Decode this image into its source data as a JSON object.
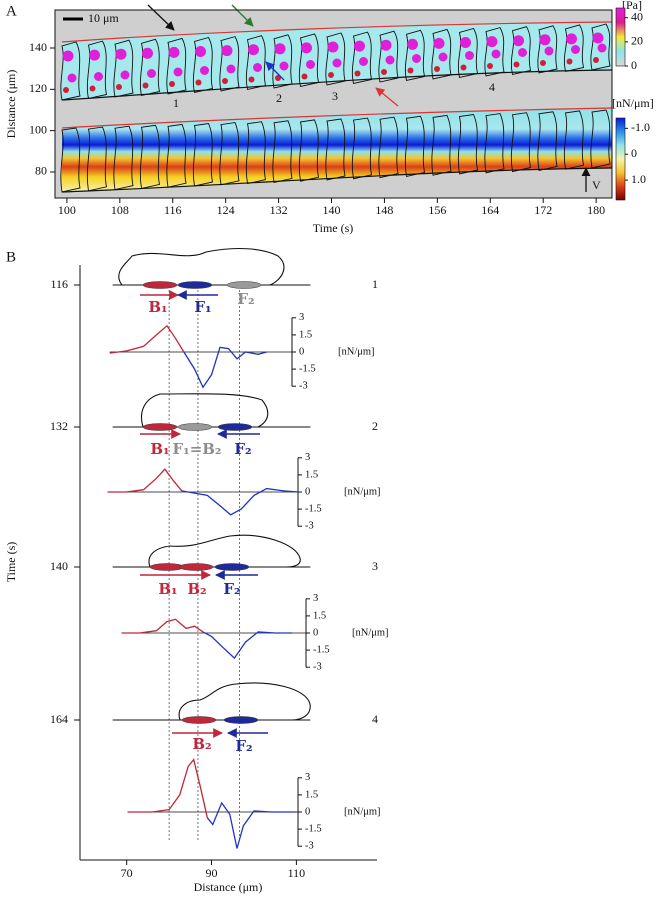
{
  "panel_a": {
    "label": "A",
    "x_label": "Time (s)",
    "y_label": "Distance (μm)",
    "xlim": [
      98.2,
      182.4
    ],
    "xticks": [
      100,
      108,
      116,
      124,
      132,
      140,
      148,
      156,
      164,
      172,
      180
    ],
    "ylim": [
      67.4,
      158.4
    ],
    "yticks": [
      80,
      100,
      120,
      140
    ],
    "scale_bar": "10 μm",
    "cell_labels": [
      "1",
      "2",
      "3",
      "4"
    ],
    "v_label": "V",
    "colorbar_top": {
      "unit": "[Pa]",
      "lim": [
        0,
        48
      ],
      "ticks": [
        0,
        20,
        40
      ],
      "colors": [
        "#d9d9d9",
        "#8fe3e8",
        "#f4ea3a",
        "#d61f8e",
        "#e81ce0"
      ]
    },
    "colorbar_bottom": {
      "unit": "[nN/μm]",
      "lim": [
        -1.4,
        1.77
      ],
      "ticks": [
        {
          "value": -1,
          "label": "-1.0"
        },
        0,
        {
          "value": 1,
          "label": "1.0"
        }
      ],
      "colors": [
        "#0a1bd6",
        "#2b8fe8",
        "#8fe3e8",
        "#f7f2b0",
        "#f5c430",
        "#d9401a",
        "#7a0000"
      ]
    }
  },
  "panel_b": {
    "label": "B",
    "x_label": "Distance (μm)",
    "y_label": "Time (s)",
    "xlim": [
      59,
      129
    ],
    "xticks": [
      70,
      90,
      110
    ],
    "guide_lines": [
      80,
      86.8,
      96.6
    ],
    "trace_yticks": [
      3,
      1.5,
      0,
      -1.5,
      -3
    ],
    "trace_unit": "[nN/μm]",
    "rows": [
      {
        "time": 116,
        "label": "1",
        "annotations": [
          {
            "text": "B₁",
            "color": "#c0273a"
          },
          {
            "text": "F₁",
            "color": "#1f2a9a"
          },
          {
            "text": "F₂",
            "color": "#8c8c8c"
          }
        ],
        "traces": [
          {
            "color": "#c0273a",
            "x": [
              66,
              70,
              74,
              77,
              79.5,
              81.5,
              83.5
            ],
            "values": [
              -0.1,
              0.1,
              0.5,
              1.5,
              2.3,
              1.2,
              0
            ]
          },
          {
            "color": "#1f35c0",
            "x": [
              83.5,
              86,
              88,
              90,
              92,
              94,
              96,
              98,
              101,
              103
            ],
            "values": [
              0,
              -1.5,
              -3.1,
              -2,
              0.4,
              0.3,
              -0.6,
              0,
              -0.2,
              0
            ]
          }
        ]
      },
      {
        "time": 132,
        "label": "2",
        "annotations": [
          {
            "text": "B₁",
            "color": "#c0273a"
          },
          {
            "text": "F₁=B₂",
            "color": "#8c8c8c"
          },
          {
            "text": "F₂",
            "color": "#1f2a9a"
          }
        ],
        "traces": [
          {
            "color": "#c0273a",
            "x": [
              65.5,
              70,
              74,
              77,
              79,
              81,
              83
            ],
            "values": [
              0,
              0,
              0.2,
              1.2,
              2,
              1,
              0.1
            ]
          },
          {
            "color": "#1f35c0",
            "x": [
              83,
              86,
              89,
              92,
              94.5,
              97,
              100,
              103,
              107,
              110.5
            ],
            "values": [
              0.1,
              -0.1,
              -0.3,
              -1.2,
              -2,
              -1.5,
              -0.3,
              0.3,
              0.1,
              0
            ]
          }
        ]
      },
      {
        "time": 140,
        "label": "3",
        "annotations": [
          {
            "text": "B₁",
            "color": "#c0273a"
          },
          {
            "text": "B₂",
            "color": "#c0273a"
          },
          {
            "text": "F₂",
            "color": "#1f2a9a"
          }
        ],
        "traces": [
          {
            "color": "#c0273a",
            "x": [
              68.8,
              73,
              77,
              79.5,
              81.5,
              84,
              86,
              88
            ],
            "values": [
              0,
              0,
              0.2,
              1,
              1.2,
              0.4,
              0.6,
              0.1
            ]
          },
          {
            "color": "#1f35c0",
            "x": [
              88,
              90,
              92.5,
              95.4,
              98,
              101,
              105,
              109
            ],
            "values": [
              0.1,
              -0.3,
              -1.2,
              -2.2,
              -0.8,
              0.1,
              0,
              0
            ]
          }
        ]
      },
      {
        "time": 164,
        "label": "4",
        "annotations": [
          {
            "text": "B₂",
            "color": "#c0273a"
          },
          {
            "text": "F₂",
            "color": "#1f2a9a"
          }
        ],
        "traces": [
          {
            "color": "#c0273a",
            "x": [
              70.2,
              76,
              80,
              82.5,
              84.5,
              85.8,
              87.5,
              89
            ],
            "values": [
              0,
              0,
              0.2,
              1.5,
              4,
              4.6,
              2,
              -0.5
            ]
          },
          {
            "color": "#1f35c0",
            "x": [
              89,
              90.3,
              92.4,
              94.3,
              96,
              97.5,
              100,
              104,
              110
            ],
            "values": [
              -0.5,
              -1.1,
              0.8,
              -0.2,
              -3.2,
              -1.2,
              0.1,
              0,
              0
            ]
          }
        ]
      }
    ]
  }
}
